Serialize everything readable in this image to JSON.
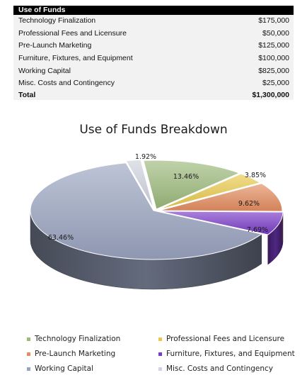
{
  "table": {
    "header": "Use of Funds",
    "rows": [
      {
        "label": "Technology Finalization",
        "amount": "$175,000"
      },
      {
        "label": "Professional Fees and Licensure",
        "amount": "$50,000"
      },
      {
        "label": "Pre-Launch Marketing",
        "amount": "$125,000"
      },
      {
        "label": "Furniture, Fixtures, and Equipment",
        "amount": "$100,000"
      },
      {
        "label": "Working Capital",
        "amount": "$825,000"
      },
      {
        "label": "Misc. Costs and Contingency",
        "amount": "$25,000"
      }
    ],
    "total": {
      "label": "Total",
      "amount": "$1,300,000"
    }
  },
  "chart_data": {
    "type": "pie",
    "title": "Use of Funds Breakdown",
    "categories": [
      "Technology Finalization",
      "Professional Fees and Licensure",
      "Pre-Launch Marketing",
      "Furniture, Fixtures, and Equipment",
      "Working Capital",
      "Misc. Costs and Contingency"
    ],
    "values": [
      175000,
      50000,
      125000,
      100000,
      825000,
      25000
    ],
    "labels": [
      "13.46%",
      "3.85%",
      "9.62%",
      "7.69%",
      "63.46%",
      "1.92%"
    ],
    "colors": [
      "#9dba7c",
      "#e9c94d",
      "#e48d60",
      "#7a3cc8",
      "#9aa4c0",
      "#ced3dd"
    ],
    "style": "3d",
    "legend_position": "bottom"
  }
}
